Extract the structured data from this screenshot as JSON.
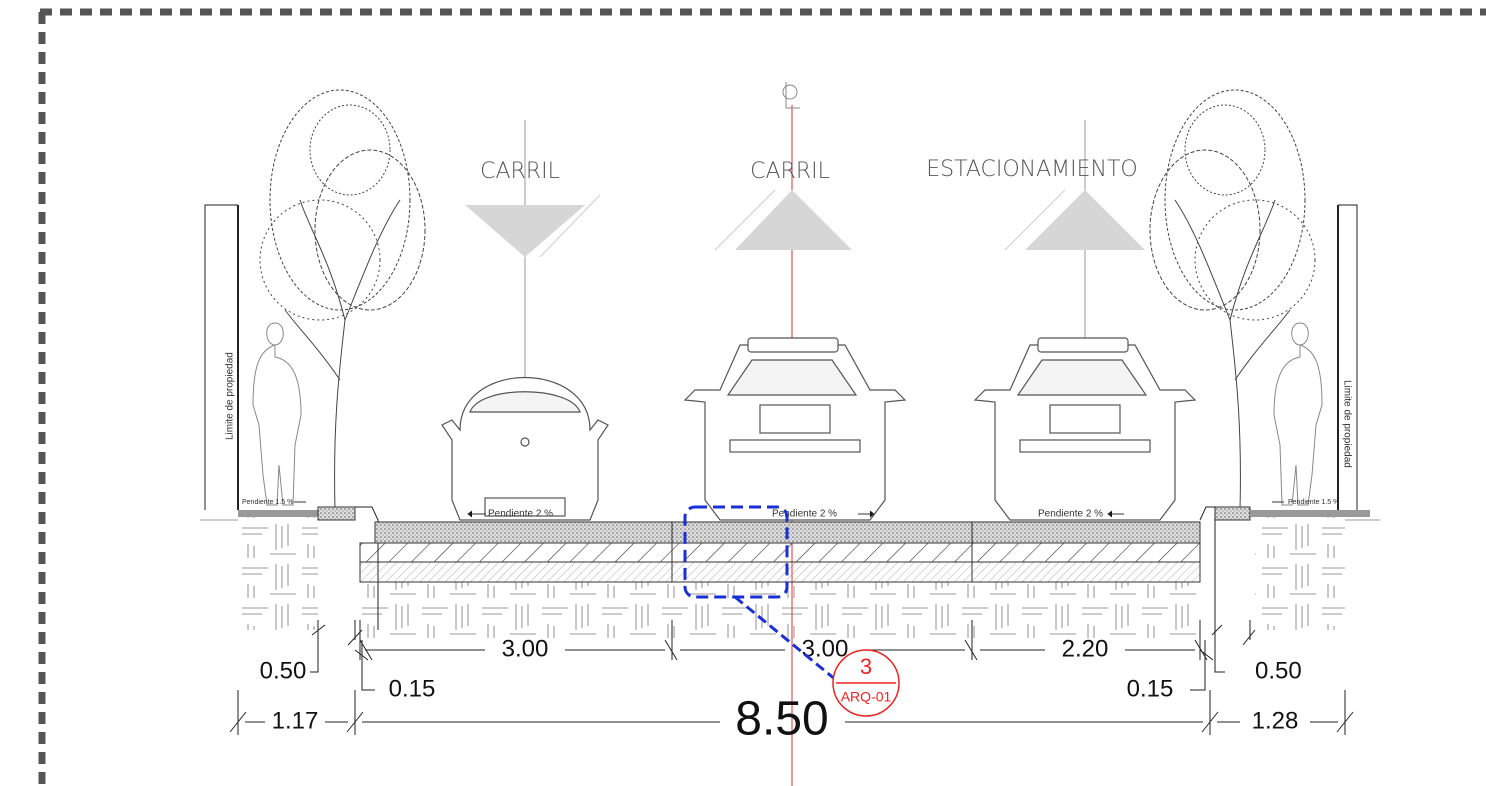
{
  "lanes": [
    "CARRIL",
    "CARRIL",
    "ESTACIONAMIENTO"
  ],
  "property_lines": [
    "Limite de propiedad",
    "Limite de propiedad"
  ],
  "slopes": {
    "sidewalk_left": "Pendiente 1.5 %",
    "sidewalk_right": "Pendiente 1.5 %",
    "lanes": [
      "Pendiente 2 %",
      "Pendiente 2 %",
      "Pendiente 2 %"
    ]
  },
  "dimensions": {
    "sidewalk_left": "0.50",
    "curb_left": "0.15",
    "lane_1": "3.00",
    "lane_2": "3.00",
    "parking": "2.20",
    "curb_right": "0.15",
    "sidewalk_right": "0.50",
    "left_total": "1.17",
    "road_total": "8.50",
    "right_total": "1.28"
  },
  "callout": {
    "number": "3",
    "sheet": "ARQ-01"
  }
}
